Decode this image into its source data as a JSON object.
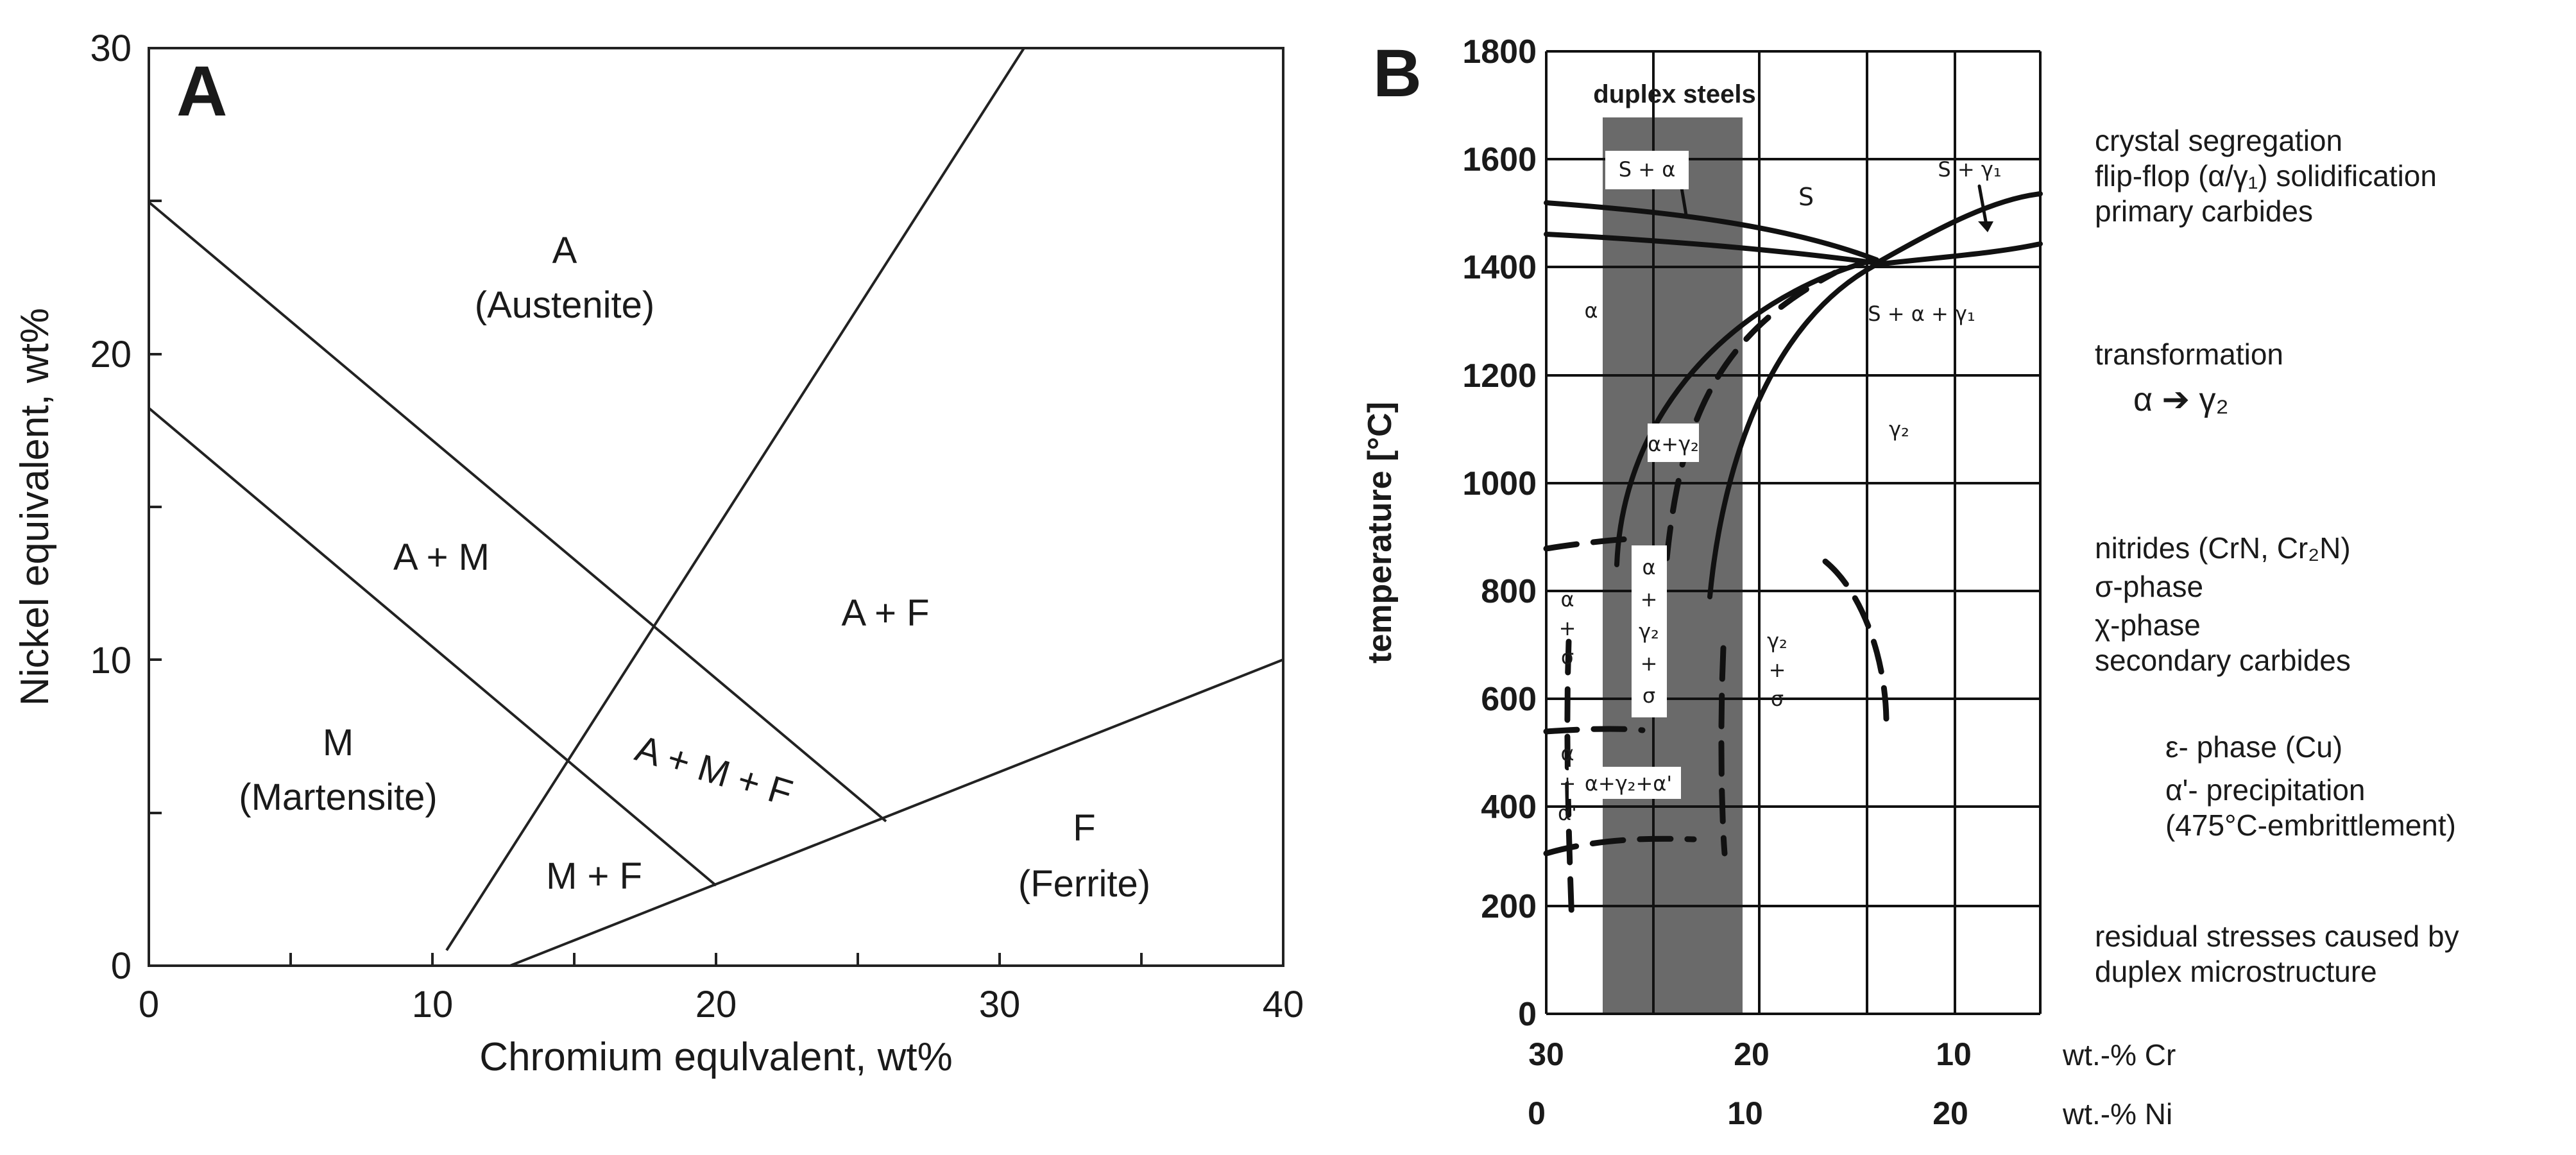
{
  "panel_a": {
    "letter": "A",
    "x_axis": {
      "label": "Chromium equlvalent, wt%",
      "ticks": [
        "0",
        "10",
        "20",
        "30",
        "40"
      ]
    },
    "y_axis": {
      "label": "Nickel equivalent, wt%",
      "ticks": [
        "0",
        "10",
        "20",
        "30"
      ]
    },
    "regions": {
      "austenite": {
        "symbol": "A",
        "name": "(Austenite)"
      },
      "austenite_martensite": "A + M",
      "austenite_ferrite": "A + F",
      "martensite": {
        "symbol": "M",
        "name": "(Martensite)"
      },
      "austenite_martensite_ferrite": "A + M + F",
      "martensite_ferrite": "M + F",
      "ferrite": {
        "symbol": "F",
        "name": "(Ferrite)"
      }
    }
  },
  "panel_b": {
    "letter": "B",
    "y_axis": {
      "label": "temperature [°C]",
      "ticks": [
        "0",
        "200",
        "400",
        "600",
        "800",
        "1000",
        "1200",
        "1400",
        "1600",
        "1800"
      ]
    },
    "x_axis_cr": {
      "ticks": [
        "30",
        "20",
        "10"
      ],
      "label": "wt.-% Cr"
    },
    "x_axis_ni": {
      "ticks": [
        "0",
        "10",
        "20"
      ],
      "label": "wt.-% Ni"
    },
    "band_label": "duplex steels",
    "phase_labels": {
      "s_alpha": "S + α",
      "s": "S",
      "s_gamma1": "S + γ₁",
      "alpha": "α",
      "s_alpha_gamma1": "S + α + γ₁",
      "gamma2": "γ₂",
      "alpha_gamma2": "α+γ₂",
      "alpha_sigma_a": "α",
      "alpha_sigma_b": "+",
      "alpha_sigma_c": "σ",
      "agas_a": "α",
      "agas_b": "+",
      "agas_c": "γ₂",
      "agas_d": "+",
      "agas_e": "σ",
      "gs_a": "γ₂",
      "gs_b": "+",
      "gs_c": "σ",
      "aap_a": "α",
      "aap_b": "+",
      "aap_c": "α'",
      "agaa": "α+γ₂+α'"
    },
    "annotations": {
      "segregation": "crystal segregation",
      "flipflop": "flip-flop (α/γ₁) solidification",
      "carbides_primary": "primary carbides",
      "transformation": "transformation",
      "alpha_to_gamma": "α ➔ γ₂",
      "nitrides": "nitrides (CrN, Cr₂N)",
      "sigma": "σ-phase",
      "chi": "χ-phase",
      "carbides_secondary": "secondary carbides",
      "epsilon": "ε- phase (Cu)",
      "alpha_prime": "α'- precipitation",
      "embrittlement": "(475°C-embrittlement)",
      "residual_1": "residual stresses caused by",
      "residual_2": "duplex microstructure"
    }
  }
}
